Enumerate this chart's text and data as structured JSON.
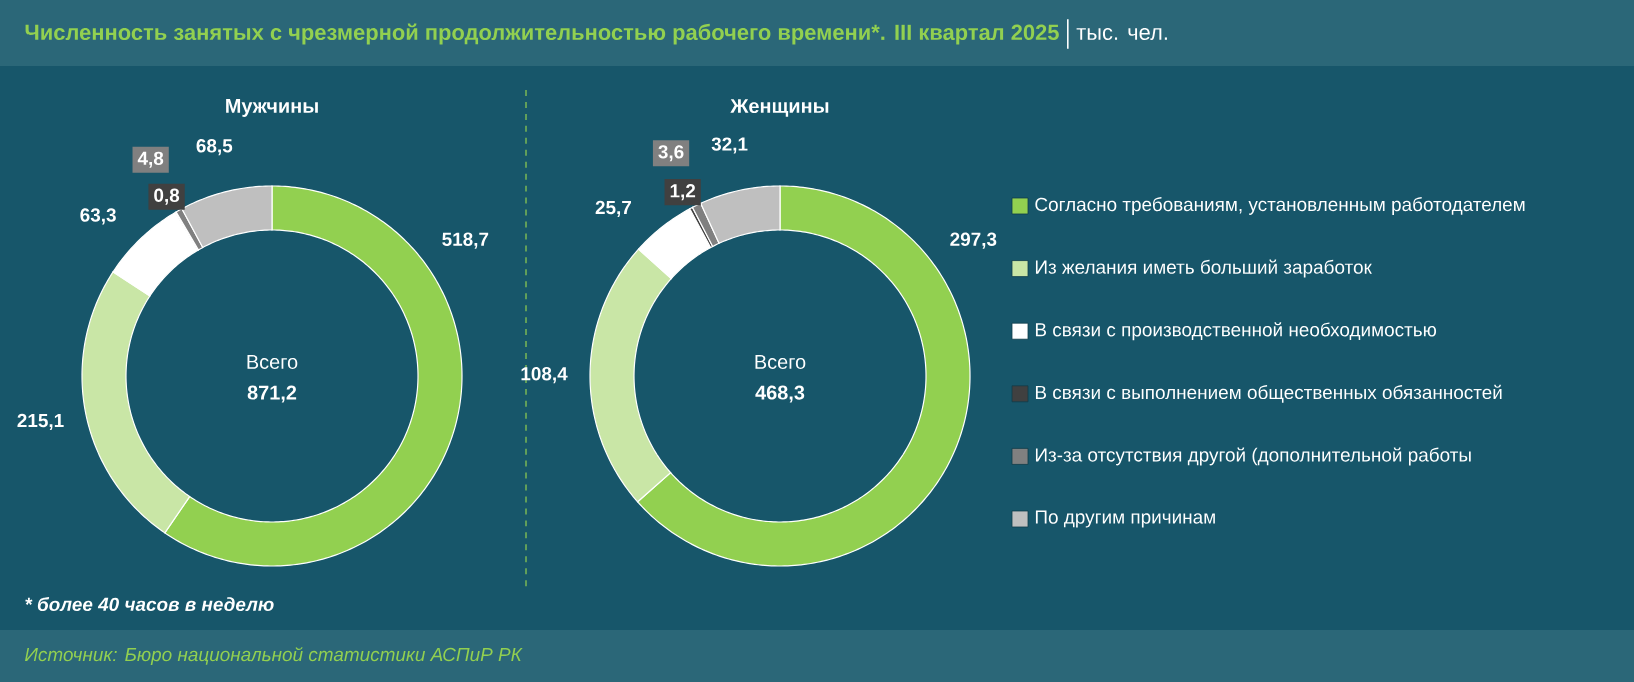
{
  "chart_data": [
    {
      "type": "donut",
      "title": "Мужчины",
      "categories": [
        null,
        null,
        null,
        null,
        null,
        null
      ],
      "values": [
        518.7,
        215.1,
        63.3,
        0.8,
        4.8,
        68.5
      ],
      "value_labels": [
        "518,7",
        "215,1",
        "63,3",
        "0,8",
        "4,8",
        "68,5"
      ],
      "colors": [
        "#92d050",
        "#c9e6a6",
        "#ffffff",
        "#404040",
        "#808080",
        "#bfbfbf"
      ],
      "annotations": [
        "Всего",
        "871,2",
        "Численность занятых с чрезмерной продолжительностью рабочего времени*. III квартал 2025",
        "тыс. чел.",
        "* более 40 часов в неделю",
        "Источник: Бюро национальной статистики АСПиР РК"
      ]
    },
    {
      "type": "donut",
      "title": "Женщины",
      "categories": [
        "Согласно требованиям, установленным работодателем",
        "Из желания иметь больший заработок",
        "В связи с производственной необходимостью",
        "В связи с выполнением общественных обязанностей",
        "Из-за отсутствия другой (дополнительной работы",
        "По другим причинам"
      ],
      "values": [
        297.3,
        108.4,
        25.7,
        1.2,
        3.6,
        32.1
      ],
      "value_labels": [
        "297,3",
        "108,4",
        "25,7",
        "1,2",
        "3,6",
        "32,1"
      ],
      "colors": [
        "#92d050",
        "#c9e6a6",
        "#ffffff",
        "#404040",
        "#808080",
        "#bfbfbf"
      ],
      "legend": "right",
      "annotations": [
        "Всего",
        "468,3"
      ]
    }
  ]
}
